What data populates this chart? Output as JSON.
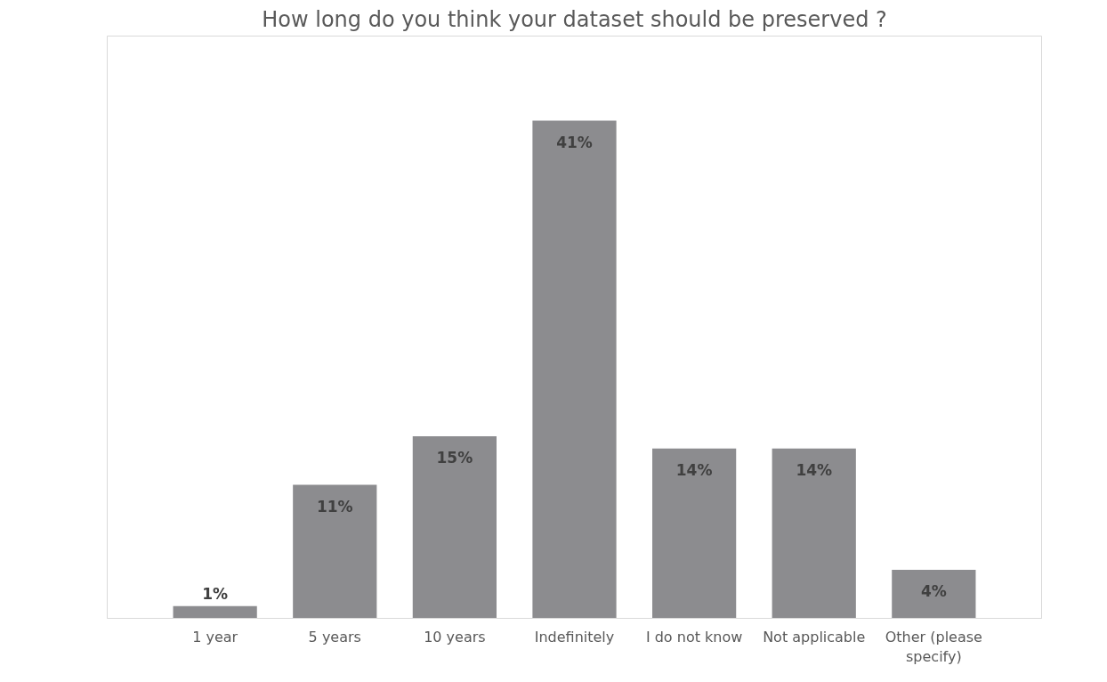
{
  "chart_data": {
    "type": "bar",
    "title": "How long do you think your dataset should be preserved ?",
    "categories": [
      "1 year",
      "5 years",
      "10 years",
      "Indefinitely",
      "I do not know",
      "Not applicable",
      "Other (please specify)"
    ],
    "values": [
      1,
      11,
      15,
      41,
      14,
      14,
      4
    ],
    "value_labels": [
      "1%",
      "11%",
      "15%",
      "41%",
      "14%",
      "14%",
      "4%"
    ],
    "color": "#8c8c8f",
    "grid": false
  }
}
